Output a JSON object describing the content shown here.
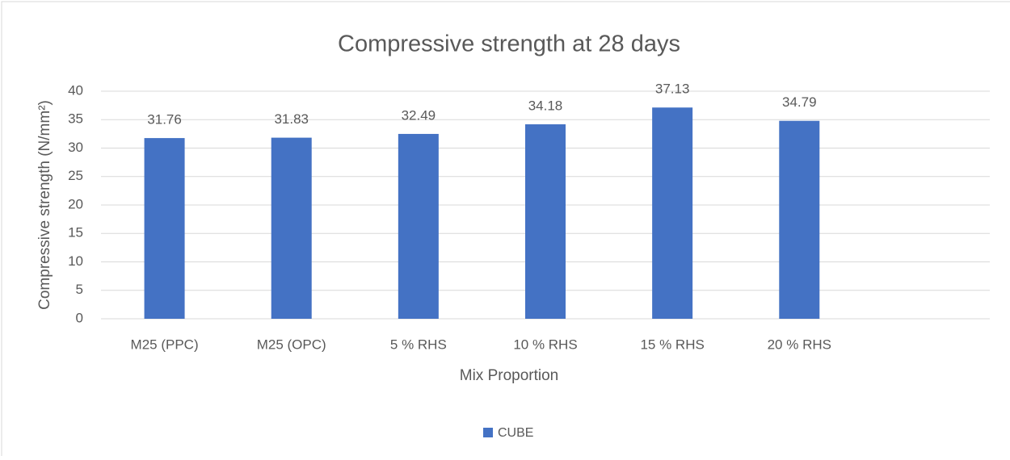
{
  "chart_data": {
    "type": "bar",
    "title": "Compressive strength at 28 days",
    "x_label": "Mix Proportion",
    "y_label": "Compressive strength (N/mm²)",
    "categories": [
      "M25 (PPC)",
      "M25 (OPC)",
      "5 % RHS",
      "10 % RHS",
      "15 % RHS",
      "20 % RHS",
      null
    ],
    "series": [
      {
        "name": "CUBE",
        "color": "#4472c4",
        "values": [
          31.76,
          31.83,
          32.49,
          34.18,
          37.13,
          34.79,
          null
        ]
      }
    ],
    "ylim": [
      0,
      40
    ],
    "yticks": [
      0,
      5,
      10,
      15,
      20,
      25,
      30,
      35,
      40
    ],
    "grid": true,
    "legend": "bottom"
  }
}
